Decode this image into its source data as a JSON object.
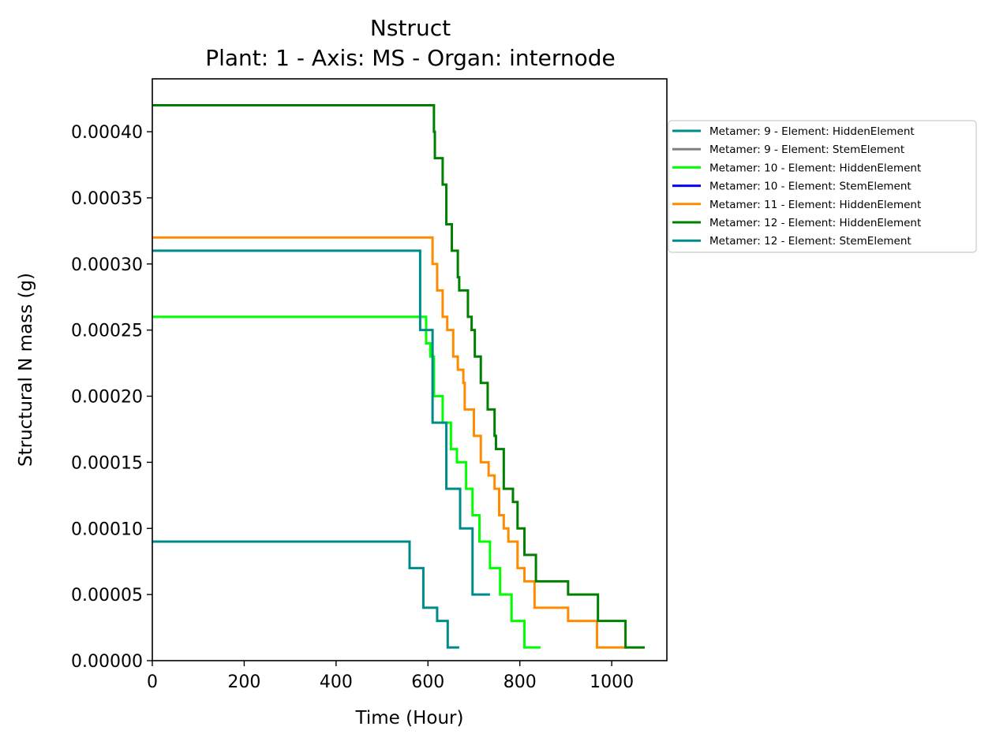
{
  "chart_data": {
    "type": "line",
    "title": "Nstruct",
    "subtitle": "Plant: 1 - Axis: MS - Organ: internode",
    "xlabel": "Time (Hour)",
    "ylabel": "Structural N mass (g)",
    "xlim": [
      0,
      1120
    ],
    "ylim": [
      0,
      0.00044
    ],
    "xticks": [
      0,
      200,
      400,
      600,
      800,
      1000
    ],
    "xtick_labels": [
      "0",
      "200",
      "400",
      "600",
      "800",
      "1000"
    ],
    "yticks": [
      0,
      5e-05,
      0.0001,
      0.00015,
      0.0002,
      0.00025,
      0.0003,
      0.00035,
      0.0004
    ],
    "ytick_labels": [
      "0.00000",
      "0.00005",
      "0.00010",
      "0.00015",
      "0.00020",
      "0.00025",
      "0.00030",
      "0.00035",
      "0.00040"
    ],
    "grid": false,
    "legend_position": "outside-right",
    "series": [
      {
        "name": "Metamer: 9 - Element: HiddenElement",
        "color": "#008b8b",
        "points": [
          [
            0,
            9e-05
          ],
          [
            560,
            9e-05
          ],
          [
            560,
            7e-05
          ],
          [
            590,
            7e-05
          ],
          [
            590,
            4e-05
          ],
          [
            620,
            4e-05
          ],
          [
            620,
            3e-05
          ],
          [
            643,
            3e-05
          ],
          [
            643,
            1e-05
          ],
          [
            668,
            1e-05
          ]
        ]
      },
      {
        "name": "Metamer: 9 - Element: StemElement",
        "color": "#808080",
        "points": []
      },
      {
        "name": "Metamer: 10 - Element: HiddenElement",
        "color": "#00ff00",
        "points": [
          [
            0,
            0.00026
          ],
          [
            596,
            0.00026
          ],
          [
            596,
            0.00024
          ],
          [
            605,
            0.00024
          ],
          [
            605,
            0.00023
          ],
          [
            613,
            0.00023
          ],
          [
            613,
            0.0002
          ],
          [
            632,
            0.0002
          ],
          [
            632,
            0.00018
          ],
          [
            650,
            0.00018
          ],
          [
            650,
            0.00016
          ],
          [
            663,
            0.00016
          ],
          [
            663,
            0.00015
          ],
          [
            683,
            0.00015
          ],
          [
            683,
            0.00013
          ],
          [
            697,
            0.00013
          ],
          [
            697,
            0.00011
          ],
          [
            712,
            0.00011
          ],
          [
            712,
            9e-05
          ],
          [
            735,
            9e-05
          ],
          [
            735,
            7e-05
          ],
          [
            757,
            7e-05
          ],
          [
            757,
            5e-05
          ],
          [
            782,
            5e-05
          ],
          [
            782,
            3e-05
          ],
          [
            810,
            3e-05
          ],
          [
            810,
            1e-05
          ],
          [
            845,
            1e-05
          ]
        ]
      },
      {
        "name": "Metamer: 10 - Element: StemElement",
        "color": "#0000ff",
        "points": []
      },
      {
        "name": "Metamer: 11 - Element: HiddenElement",
        "color": "#ff8c00",
        "points": [
          [
            0,
            0.00032
          ],
          [
            610,
            0.00032
          ],
          [
            610,
            0.0003
          ],
          [
            620,
            0.0003
          ],
          [
            620,
            0.00028
          ],
          [
            632,
            0.00028
          ],
          [
            632,
            0.00026
          ],
          [
            642,
            0.00026
          ],
          [
            642,
            0.00025
          ],
          [
            655,
            0.00025
          ],
          [
            655,
            0.00023
          ],
          [
            665,
            0.00023
          ],
          [
            665,
            0.00022
          ],
          [
            677,
            0.00022
          ],
          [
            677,
            0.00021
          ],
          [
            680,
            0.00021
          ],
          [
            680,
            0.00019
          ],
          [
            700,
            0.00019
          ],
          [
            700,
            0.00017
          ],
          [
            715,
            0.00017
          ],
          [
            715,
            0.00015
          ],
          [
            732,
            0.00015
          ],
          [
            732,
            0.00014
          ],
          [
            745,
            0.00014
          ],
          [
            745,
            0.00013
          ],
          [
            755,
            0.00013
          ],
          [
            755,
            0.00011
          ],
          [
            765,
            0.00011
          ],
          [
            765,
            0.0001
          ],
          [
            775,
            0.0001
          ],
          [
            775,
            9e-05
          ],
          [
            795,
            9e-05
          ],
          [
            795,
            7e-05
          ],
          [
            810,
            7e-05
          ],
          [
            810,
            6e-05
          ],
          [
            832,
            6e-05
          ],
          [
            832,
            4e-05
          ],
          [
            905,
            4e-05
          ],
          [
            905,
            3e-05
          ],
          [
            968,
            3e-05
          ],
          [
            968,
            1e-05
          ],
          [
            1030,
            1e-05
          ]
        ]
      },
      {
        "name": "Metamer: 12 - Element: HiddenElement",
        "color": "#008000",
        "points": [
          [
            0,
            0.00042
          ],
          [
            613,
            0.00042
          ],
          [
            613,
            0.0004
          ],
          [
            615,
            0.0004
          ],
          [
            615,
            0.00038
          ],
          [
            632,
            0.00038
          ],
          [
            632,
            0.00036
          ],
          [
            640,
            0.00036
          ],
          [
            640,
            0.00033
          ],
          [
            652,
            0.00033
          ],
          [
            652,
            0.00031
          ],
          [
            665,
            0.00031
          ],
          [
            665,
            0.00029
          ],
          [
            668,
            0.00029
          ],
          [
            668,
            0.00028
          ],
          [
            687,
            0.00028
          ],
          [
            687,
            0.00026
          ],
          [
            695,
            0.00026
          ],
          [
            695,
            0.00025
          ],
          [
            702,
            0.00025
          ],
          [
            702,
            0.00023
          ],
          [
            715,
            0.00023
          ],
          [
            715,
            0.00021
          ],
          [
            730,
            0.00021
          ],
          [
            730,
            0.00019
          ],
          [
            745,
            0.00019
          ],
          [
            745,
            0.00017
          ],
          [
            748,
            0.00017
          ],
          [
            748,
            0.00016
          ],
          [
            765,
            0.00016
          ],
          [
            765,
            0.00013
          ],
          [
            785,
            0.00013
          ],
          [
            785,
            0.00012
          ],
          [
            795,
            0.00012
          ],
          [
            795,
            0.0001
          ],
          [
            810,
            0.0001
          ],
          [
            810,
            8e-05
          ],
          [
            835,
            8e-05
          ],
          [
            835,
            6e-05
          ],
          [
            905,
            6e-05
          ],
          [
            905,
            5e-05
          ],
          [
            970,
            5e-05
          ],
          [
            970,
            3e-05
          ],
          [
            1030,
            3e-05
          ],
          [
            1030,
            1e-05
          ],
          [
            1072,
            1e-05
          ]
        ]
      },
      {
        "name": "Metamer: 12 - Element: StemElement",
        "color": "#008b8b",
        "points": [
          [
            0,
            0.00031
          ],
          [
            583,
            0.00031
          ],
          [
            583,
            0.00025
          ],
          [
            600,
            0.00025
          ],
          [
            600,
            0.00025
          ],
          [
            610,
            0.00025
          ],
          [
            610,
            0.00018
          ],
          [
            640,
            0.00018
          ],
          [
            640,
            0.00013
          ],
          [
            670,
            0.00013
          ],
          [
            670,
            0.0001
          ],
          [
            697,
            0.0001
          ],
          [
            697,
            5e-05
          ],
          [
            735,
            5e-05
          ]
        ]
      }
    ]
  }
}
